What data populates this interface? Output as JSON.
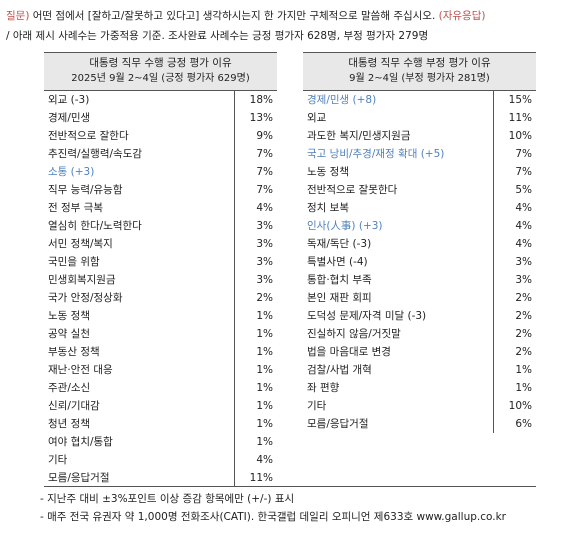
{
  "question": {
    "prefix": "질문)",
    "text": "어떤 점에서 [잘하고/잘못하고 있다고] 생각하시는지 한 가지만 구체적으로 말씀해 주십시오.",
    "tag": "(자유응답)",
    "line2": "/ 아래 제시 사례수는 가중적용 기준. 조사완료 사례수는 긍정 평가자 628명, 부정 평가자 279명"
  },
  "positive": {
    "title": "대통령 직무 수행 긍정 평가 이유",
    "subtitle": "2025년 9월 2~4일 (긍정 평가자 629명)",
    "rows": [
      {
        "label": "외교 (-3)",
        "value": "18%",
        "highlight": false
      },
      {
        "label": "경제/민생",
        "value": "13%",
        "highlight": false
      },
      {
        "label": "전반적으로 잘한다",
        "value": "9%",
        "highlight": false
      },
      {
        "label": "추진력/실행력/속도감",
        "value": "7%",
        "highlight": false
      },
      {
        "label": "소통 (+3)",
        "value": "7%",
        "highlight": true
      },
      {
        "label": "직무 능력/유능함",
        "value": "7%",
        "highlight": false
      },
      {
        "label": "전 정부 극복",
        "value": "4%",
        "highlight": false
      },
      {
        "label": "열심히 한다/노력한다",
        "value": "3%",
        "highlight": false
      },
      {
        "label": "서민 정책/복지",
        "value": "3%",
        "highlight": false
      },
      {
        "label": "국민을 위함",
        "value": "3%",
        "highlight": false
      },
      {
        "label": "민생회복지원금",
        "value": "3%",
        "highlight": false
      },
      {
        "label": "국가 안정/정상화",
        "value": "2%",
        "highlight": false
      },
      {
        "label": "노동 정책",
        "value": "1%",
        "highlight": false
      },
      {
        "label": "공약 실천",
        "value": "1%",
        "highlight": false
      },
      {
        "label": "부동산 정책",
        "value": "1%",
        "highlight": false
      },
      {
        "label": "재난·안전 대응",
        "value": "1%",
        "highlight": false
      },
      {
        "label": "주관/소신",
        "value": "1%",
        "highlight": false
      },
      {
        "label": "신뢰/기대감",
        "value": "1%",
        "highlight": false
      },
      {
        "label": "청년 정책",
        "value": "1%",
        "highlight": false
      },
      {
        "label": "여야 협치/통합",
        "value": "1%",
        "highlight": false
      },
      {
        "label": "기타",
        "value": "4%",
        "highlight": false
      },
      {
        "label": "모름/응답거절",
        "value": "11%",
        "highlight": false
      }
    ]
  },
  "negative": {
    "title": "대통령 직무 수행 부정 평가 이유",
    "subtitle": "9월 2~4일 (부정 평가자 281명)",
    "rows": [
      {
        "label": "경제/민생 (+8)",
        "value": "15%",
        "highlight": true
      },
      {
        "label": "외교",
        "value": "11%",
        "highlight": false
      },
      {
        "label": "과도한 복지/민생지원금",
        "value": "10%",
        "highlight": false
      },
      {
        "label": "국고 낭비/추경/재정 확대 (+5)",
        "value": "7%",
        "highlight": true
      },
      {
        "label": "노동 정책",
        "value": "7%",
        "highlight": false
      },
      {
        "label": "전반적으로 잘못한다",
        "value": "5%",
        "highlight": false
      },
      {
        "label": "정치 보복",
        "value": "4%",
        "highlight": false
      },
      {
        "label": "인사(人事) (+3)",
        "value": "4%",
        "highlight": true
      },
      {
        "label": "독재/독단 (-3)",
        "value": "4%",
        "highlight": false
      },
      {
        "label": "특별사면 (-4)",
        "value": "3%",
        "highlight": false
      },
      {
        "label": "통합·협치 부족",
        "value": "3%",
        "highlight": false
      },
      {
        "label": "본인 재판 회피",
        "value": "2%",
        "highlight": false
      },
      {
        "label": "도덕성 문제/자격 미달 (-3)",
        "value": "2%",
        "highlight": false
      },
      {
        "label": "진실하지 않음/거짓말",
        "value": "2%",
        "highlight": false
      },
      {
        "label": "법을 마음대로 변경",
        "value": "2%",
        "highlight": false
      },
      {
        "label": "검찰/사법 개혁",
        "value": "1%",
        "highlight": false
      },
      {
        "label": "좌 편향",
        "value": "1%",
        "highlight": false
      },
      {
        "label": "기타",
        "value": "10%",
        "highlight": false
      },
      {
        "label": "모름/응답거절",
        "value": "6%",
        "highlight": false
      }
    ]
  },
  "notes": [
    "- 지난주 대비 ±3%포인트 이상 증감 항목에만 (+/-) 표시",
    "- 매주 전국 유권자 약 1,000명 전화조사(CATI). 한국갤럽 데일리 오피니언 제633호 www.gallup.co.kr"
  ],
  "colors": {
    "highlight": "#4f81bd",
    "prefix": "#c0504d",
    "header_bg": "#e8e8e8"
  }
}
